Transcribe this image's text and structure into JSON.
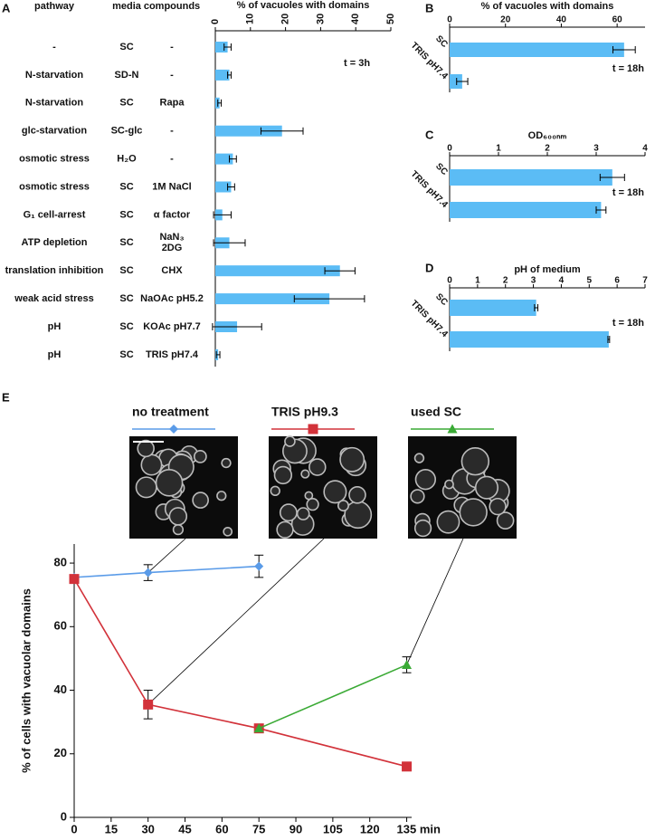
{
  "panels": [
    "A",
    "B",
    "C",
    "D",
    "E"
  ],
  "chart_data": [
    {
      "type": "hbar",
      "xlabel": "% of  vacuoles with domains",
      "columns": [
        "pathway",
        "media",
        "compounds"
      ],
      "rows": [
        [
          "-",
          "SC",
          "-"
        ],
        [
          "N-starvation",
          "SD-N",
          "-"
        ],
        [
          "N-starvation",
          "SC",
          "Rapa"
        ],
        [
          "glc-starvation",
          "SC-glc",
          "-"
        ],
        [
          "osmotic stress",
          "H₂O",
          "-"
        ],
        [
          "osmotic stress",
          "SC",
          "1M NaCl"
        ],
        [
          "G₁ cell-arrest",
          "SC",
          "α factor"
        ],
        [
          "ATP depletion",
          "SC",
          [
            "NaN₃",
            "2DG"
          ]
        ],
        [
          "translation inhibition",
          "SC",
          "CHX"
        ],
        [
          "weak acid stress",
          "SC",
          "NaOAc pH5.2"
        ],
        [
          "pH",
          "SC",
          "KOAc pH7.7"
        ],
        [
          "pH",
          "SC",
          "TRIS pH7.4"
        ]
      ],
      "values": [
        3.5,
        4,
        1.2,
        19,
        5,
        4.5,
        2,
        4,
        35.5,
        32.5,
        6.2,
        0.8
      ],
      "errors": [
        1,
        0.5,
        0.5,
        6,
        1,
        1,
        2.5,
        4.5,
        4.3,
        10,
        7,
        0.5
      ],
      "color": "#5bbcf5",
      "xlim": [
        0,
        50
      ],
      "xticks": [
        0,
        10,
        20,
        30,
        40,
        50
      ],
      "annotation": "t = 3h"
    },
    {
      "type": "hbar",
      "xlabel": "% of  vacuoles with domains",
      "categories": [
        "SC",
        "TRIS pH7.4"
      ],
      "values": [
        62.5,
        4.5
      ],
      "errors": [
        4,
        2
      ],
      "color": "#5bbcf5",
      "xlim": [
        0,
        70
      ],
      "xticks": [
        0,
        20,
        40,
        60
      ],
      "annotation": "t = 18h"
    },
    {
      "type": "hbar",
      "xlabel": "OD₆₀₀ₙₘ",
      "categories": [
        "SC",
        "TRIS pH7.4"
      ],
      "values": [
        3.33,
        3.1
      ],
      "errors": [
        0.25,
        0.1
      ],
      "color": "#5bbcf5",
      "xlim": [
        0,
        4
      ],
      "xticks": [
        0,
        1,
        2,
        3,
        4
      ],
      "annotation": "t = 18h"
    },
    {
      "type": "hbar",
      "xlabel": "pH of medium",
      "categories": [
        "SC",
        "TRIS pH7.4"
      ],
      "values": [
        3.1,
        5.7
      ],
      "errors": [
        0.06,
        0.03
      ],
      "color": "#5bbcf5",
      "xlim": [
        0,
        7
      ],
      "xticks": [
        0,
        1,
        2,
        3,
        4,
        5,
        6,
        7
      ],
      "annotation": "t = 18h"
    },
    {
      "type": "line",
      "ylabel": "% of cells with vacuolar domains",
      "x": [
        0,
        30,
        75,
        135
      ],
      "series": [
        {
          "name": "no treatment",
          "color": "#5a9be8",
          "marker": "diamond",
          "values": [
            75.5,
            77,
            79,
            null
          ],
          "errors": [
            null,
            2.5,
            3.5,
            null
          ]
        },
        {
          "name": "TRIS pH9.3",
          "color": "#d2323a",
          "marker": "square",
          "values": [
            75,
            35.5,
            28,
            16
          ],
          "errors": [
            null,
            4.5,
            null,
            null
          ]
        },
        {
          "name": "used SC",
          "color": "#3aaa35",
          "marker": "triangle",
          "values": [
            null,
            null,
            28,
            48
          ],
          "errors": [
            null,
            null,
            null,
            2.5
          ]
        }
      ],
      "xlim": [
        0,
        137
      ],
      "xticks": [
        0,
        15,
        30,
        45,
        60,
        75,
        90,
        105,
        120,
        {
          "value": 135,
          "label": "135 min"
        }
      ],
      "ylim": [
        0,
        86
      ],
      "yticks": [
        0,
        20,
        40,
        60,
        80
      ]
    }
  ]
}
